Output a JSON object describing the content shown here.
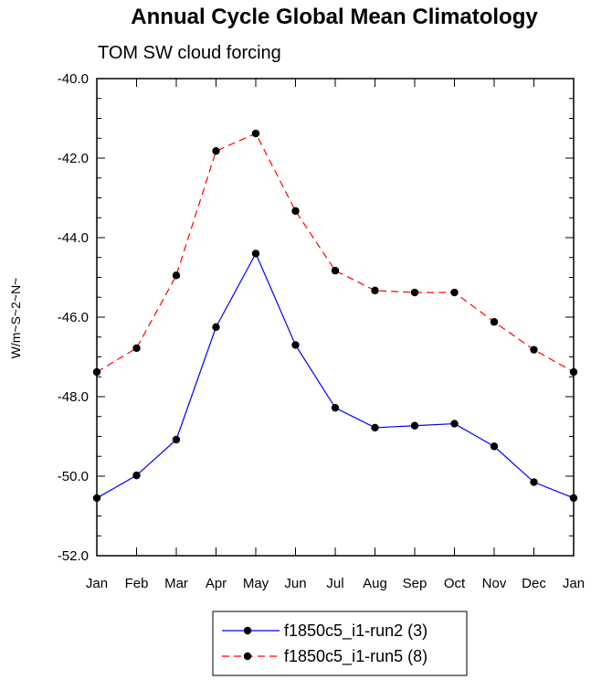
{
  "chart_data": {
    "type": "line",
    "title": "Annual Cycle Global Mean Climatology",
    "subtitle": "TOM SW cloud forcing",
    "ylabel": "W/m~S~2~N~",
    "xlabel": "",
    "categories": [
      "Jan",
      "Feb",
      "Mar",
      "Apr",
      "May",
      "Jun",
      "Jul",
      "Aug",
      "Sep",
      "Oct",
      "Nov",
      "Dec",
      "Jan"
    ],
    "ylim": [
      -52.0,
      -40.0
    ],
    "yticks": [
      "-52.0",
      "-50.0",
      "-48.0",
      "-46.0",
      "-44.0",
      "-42.0",
      "-40.0"
    ],
    "series": [
      {
        "name": "f1850c5_i1-run2 (3)",
        "color": "#0000ff",
        "style": "solid",
        "values": [
          -50.55,
          -49.98,
          -49.08,
          -46.25,
          -44.4,
          -46.7,
          -48.28,
          -48.78,
          -48.73,
          -48.68,
          -49.25,
          -50.15,
          -50.55
        ]
      },
      {
        "name": "f1850c5_i1-run5 (8)",
        "color": "#ff0000",
        "style": "dashed",
        "values": [
          -47.38,
          -46.78,
          -44.95,
          -41.82,
          -41.38,
          -43.33,
          -44.83,
          -45.33,
          -45.38,
          -45.38,
          -46.12,
          -46.82,
          -47.38
        ]
      }
    ]
  }
}
